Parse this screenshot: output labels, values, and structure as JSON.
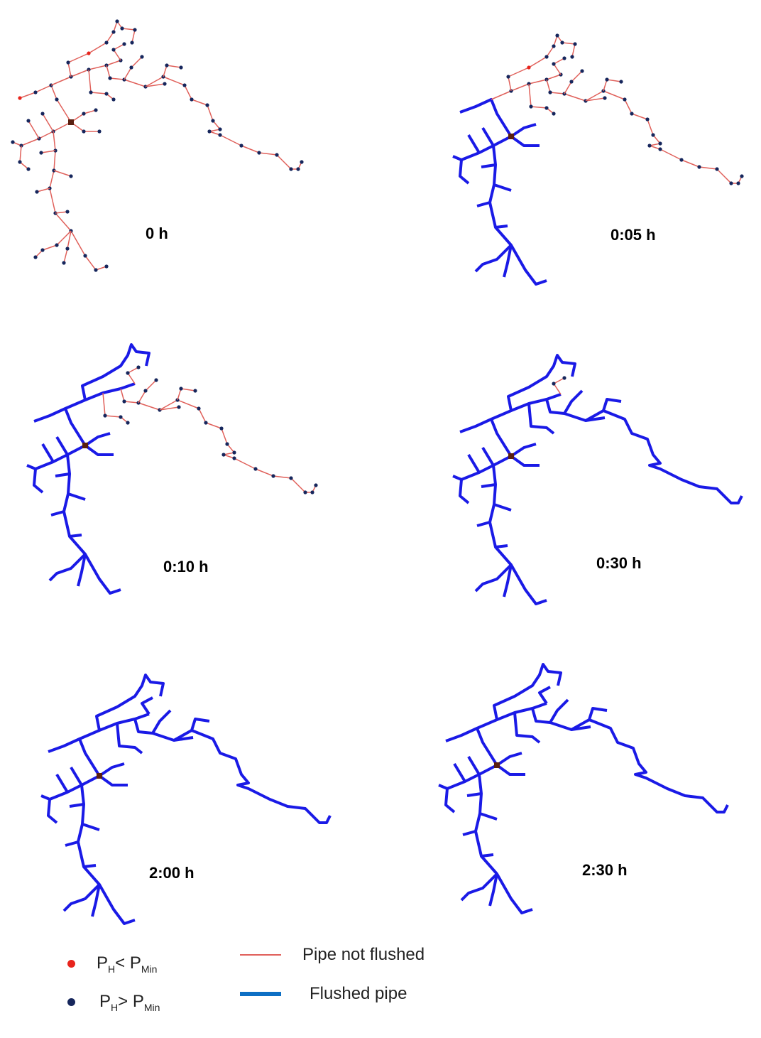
{
  "colors": {
    "pipe_not_flushed": "#e0605a",
    "flushed_pipe": "#1a1ae6",
    "node_above_min": "#16265c",
    "node_below_min": "#e8241c",
    "source": "#5a1f10"
  },
  "panels": [
    {
      "label": "0 h",
      "flushed_fraction": 0.0
    },
    {
      "label": "0:05 h",
      "flushed_fraction": 0.3
    },
    {
      "label": "0:10 h",
      "flushed_fraction": 0.45
    },
    {
      "label": "0:30 h",
      "flushed_fraction": 0.85
    },
    {
      "label": "2:00 h",
      "flushed_fraction": 0.97
    },
    {
      "label": "2:30 h",
      "flushed_fraction": 1.0
    }
  ],
  "legend": {
    "below_min": {
      "p": "P",
      "h": "H",
      "op": "< P",
      "min": "Min"
    },
    "above_min": {
      "p": "P",
      "h": "H",
      "op": "> P",
      "min": "Min"
    },
    "pipe_not_flushed": "Pipe not flushed",
    "flushed_pipe": "Flushed pipe"
  }
}
